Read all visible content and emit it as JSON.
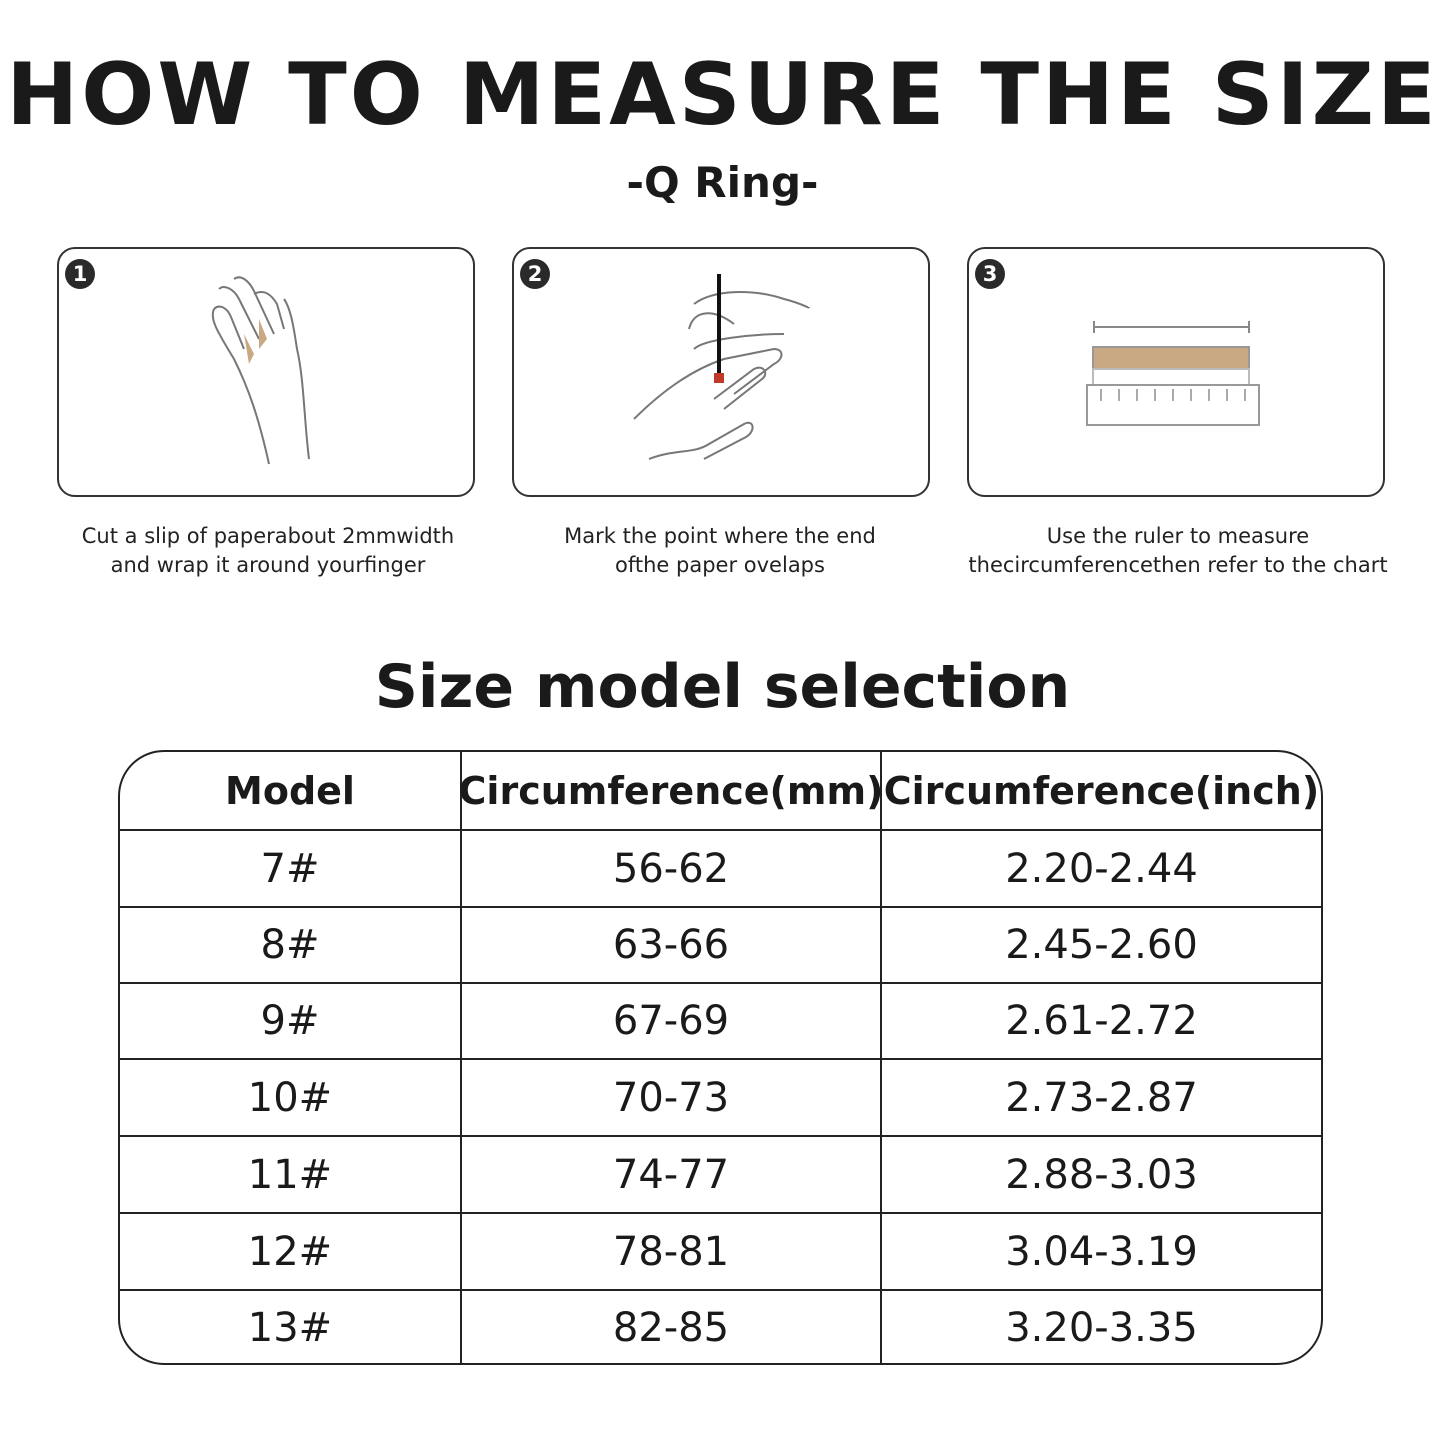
{
  "header": {
    "title": "HOW TO MEASURE THE SIZE",
    "subtitle": "-Q Ring-"
  },
  "steps": [
    {
      "number": "1",
      "caption_line1": "Cut a slip of paperabout 2mmwidth",
      "caption_line2": "and wrap it around yourfinger",
      "icon": "hand-wrap-paper-icon"
    },
    {
      "number": "2",
      "caption_line1": "Mark the point where the end",
      "caption_line2": "ofthe paper ovelaps",
      "icon": "hand-mark-pen-icon"
    },
    {
      "number": "3",
      "caption_line1": "Use the ruler to measure",
      "caption_line2": "thecircumferencethen refer to the chart",
      "icon": "ruler-measure-icon"
    }
  ],
  "colors": {
    "paper": "#c9a884",
    "mark": "#c0392b"
  },
  "section_title": "Size model selection",
  "table": {
    "headers": [
      "Model",
      "Circumference(mm)",
      "Circumference(inch)"
    ],
    "rows": [
      [
        "7#",
        "56-62",
        "2.20-2.44"
      ],
      [
        "8#",
        "63-66",
        "2.45-2.60"
      ],
      [
        "9#",
        "67-69",
        "2.61-2.72"
      ],
      [
        "10#",
        "70-73",
        "2.73-2.87"
      ],
      [
        "11#",
        "74-77",
        "2.88-3.03"
      ],
      [
        "12#",
        "78-81",
        "3.04-3.19"
      ],
      [
        "13#",
        "82-85",
        "3.20-3.35"
      ]
    ]
  }
}
